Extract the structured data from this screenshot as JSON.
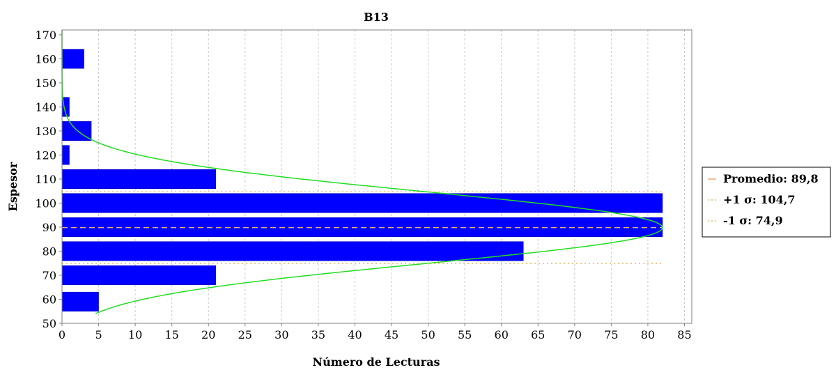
{
  "chart_data": {
    "type": "bar",
    "orientation": "horizontal",
    "title": "B13",
    "xlabel": "Número de Lecturas",
    "ylabel": "Espesor",
    "xlim": [
      0,
      86
    ],
    "ylim": [
      50,
      172
    ],
    "x_ticks": [
      0,
      5,
      10,
      15,
      20,
      25,
      30,
      35,
      40,
      45,
      50,
      55,
      60,
      65,
      70,
      75,
      80,
      85
    ],
    "y_ticks": [
      50,
      60,
      70,
      80,
      90,
      100,
      110,
      120,
      130,
      140,
      150,
      160,
      170
    ],
    "grid": "vertical dashed",
    "bar_color": "#0000ff",
    "bars": [
      {
        "y_from": 55,
        "y_to": 63,
        "value": 5
      },
      {
        "y_from": 66,
        "y_to": 74,
        "value": 21
      },
      {
        "y_from": 76,
        "y_to": 84,
        "value": 63
      },
      {
        "y_from": 86,
        "y_to": 94,
        "value": 82
      },
      {
        "y_from": 96,
        "y_to": 104,
        "value": 82
      },
      {
        "y_from": 106,
        "y_to": 114,
        "value": 21
      },
      {
        "y_from": 116,
        "y_to": 124,
        "value": 1
      },
      {
        "y_from": 126,
        "y_to": 134,
        "value": 4
      },
      {
        "y_from": 136,
        "y_to": 144,
        "value": 1
      },
      {
        "y_from": 156,
        "y_to": 164,
        "value": 3
      }
    ],
    "normal_curve": {
      "color": "#22dd22",
      "mean": 89.8,
      "sigma": 14.9,
      "peak": 82,
      "y_range": [
        54,
        172
      ]
    },
    "reference_lines": [
      {
        "label": "Promedio: 89,8",
        "value": 89.8,
        "color": "#e8b070",
        "style": "dashed"
      },
      {
        "label": "+1 σ: 104,7",
        "value": 104.7,
        "color": "#f0b868",
        "style": "dotted"
      },
      {
        "label": "-1 σ: 74,9",
        "value": 74.9,
        "color": "#f0b868",
        "style": "dotted"
      }
    ],
    "legend_position": "right"
  }
}
